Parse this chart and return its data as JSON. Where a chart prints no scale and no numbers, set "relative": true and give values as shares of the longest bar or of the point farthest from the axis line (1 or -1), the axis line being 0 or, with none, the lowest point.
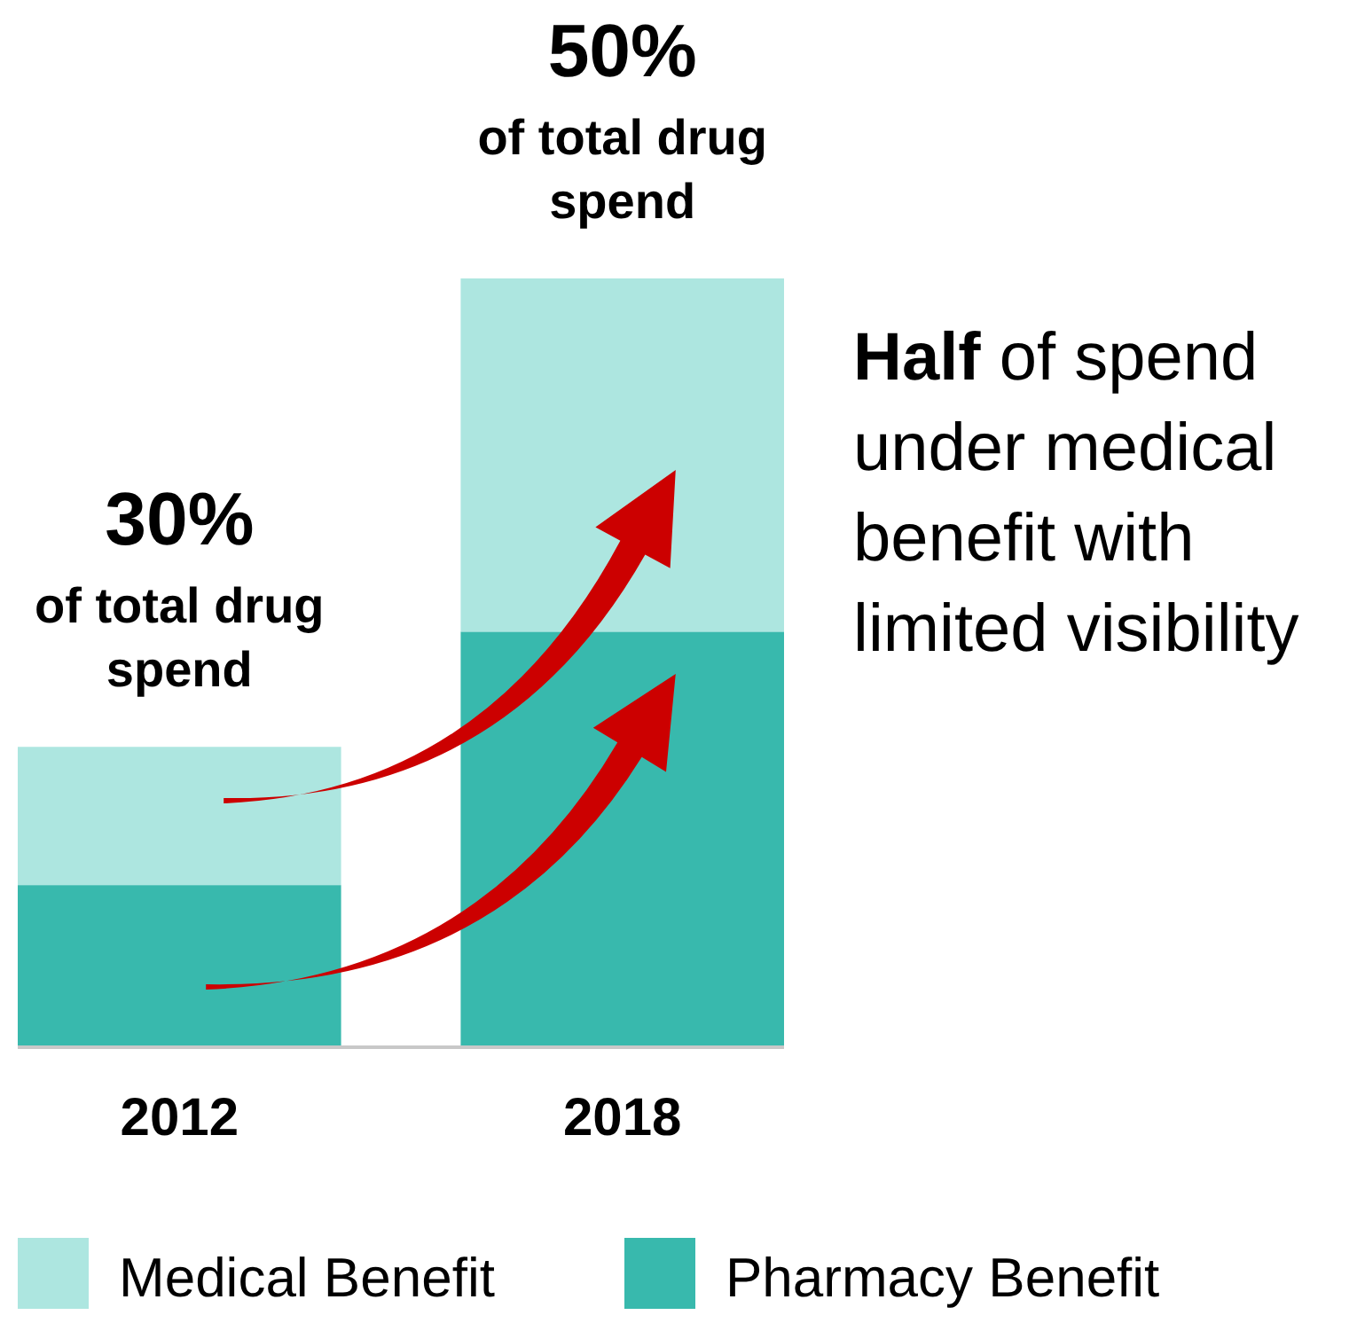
{
  "chart_data": {
    "type": "bar",
    "stacked": true,
    "relative": true,
    "categories": [
      "2012",
      "2018"
    ],
    "series": [
      {
        "name": "Pharmacy Benefit",
        "color": "#38b9ad",
        "values": [
          0.21,
          0.54
        ]
      },
      {
        "name": "Medical Benefit",
        "color": "#ade6e0",
        "values": [
          0.18,
          0.46
        ]
      }
    ],
    "annotations": [
      "30%",
      "of total drug spend",
      "50%",
      "of total drug spend",
      "Half of spend under medical benefit with limited visibility"
    ],
    "legend": "bottom"
  }
}
